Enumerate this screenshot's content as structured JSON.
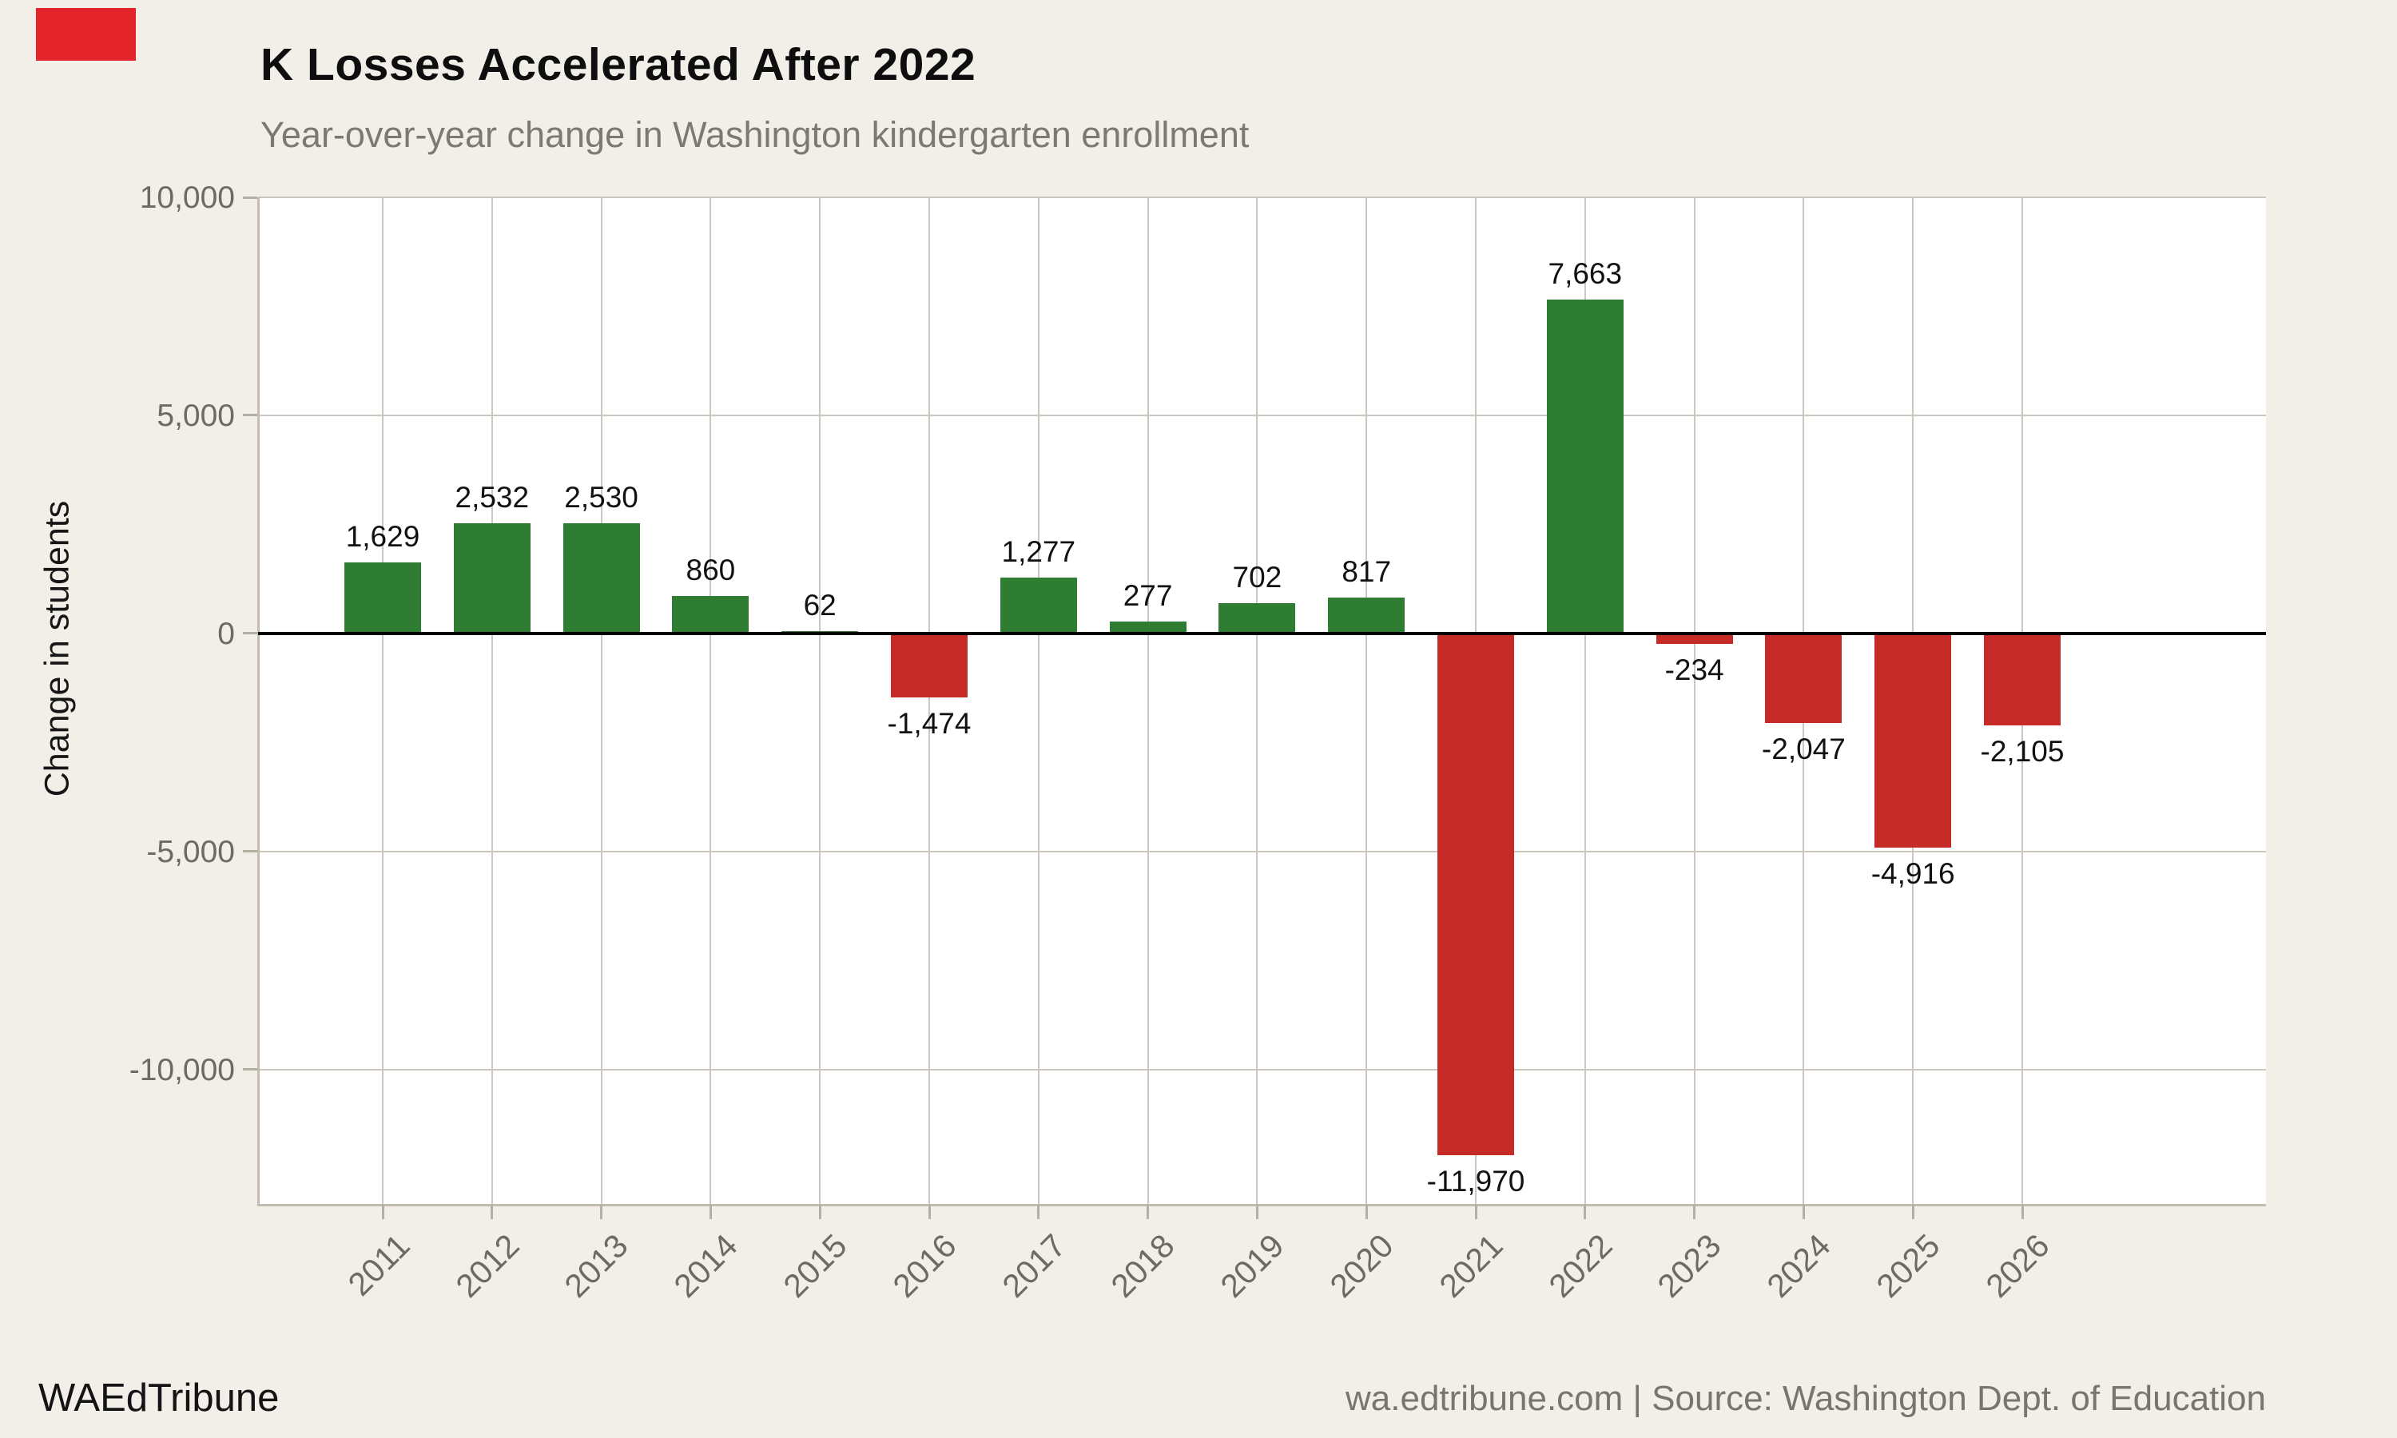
{
  "red_marker": {
    "color": "#e3242b"
  },
  "header": {
    "title": "K Losses Accelerated After 2022",
    "subtitle": "Year-over-year change in Washington kindergarten enrollment"
  },
  "footer": {
    "brand": "WAEdTribune",
    "source": "wa.edtribune.com | Source: Washington Dept. of Education"
  },
  "chart_data": {
    "type": "bar",
    "title": "K Losses Accelerated After 2022",
    "subtitle": "Year-over-year change in Washington kindergarten enrollment",
    "categories": [
      "2011",
      "2012",
      "2013",
      "2014",
      "2015",
      "2016",
      "2017",
      "2018",
      "2019",
      "2020",
      "2021",
      "2022",
      "2023",
      "2024",
      "2025",
      "2026"
    ],
    "values": [
      1629,
      2532,
      2530,
      860,
      62,
      -1474,
      1277,
      277,
      702,
      817,
      -11970,
      7663,
      -234,
      -2047,
      -4916,
      -2105
    ],
    "bar_labels": [
      "1,629",
      "2,532",
      "2,530",
      "860",
      "62",
      "-1,474",
      "1,277",
      "277",
      "702",
      "817",
      "-11,970",
      "7,663",
      "-234",
      "-2,047",
      "-4,916",
      "-2,105"
    ],
    "xlabel": "",
    "ylabel": "Change in students",
    "ylim": [
      -13100,
      10000
    ],
    "yticks": [
      10000,
      5000,
      0,
      -5000,
      -10000
    ],
    "ytick_labels": [
      "10,000",
      "5,000",
      "0",
      "-5,000",
      "-10,000"
    ],
    "grid": true,
    "legend_position": "none",
    "positive_color": "#2e7d32",
    "negative_color": "#c62b28",
    "zero_line_color": "#000000",
    "background_color": "#f2efe9",
    "plot_background_color": "#ffffff",
    "gridline_color": "#ccc7bd",
    "axis_color": "#c3bdb1",
    "tick_color": "#b5afa3",
    "tick_label_color": "#6e6a63",
    "value_label_color": "#111111"
  }
}
